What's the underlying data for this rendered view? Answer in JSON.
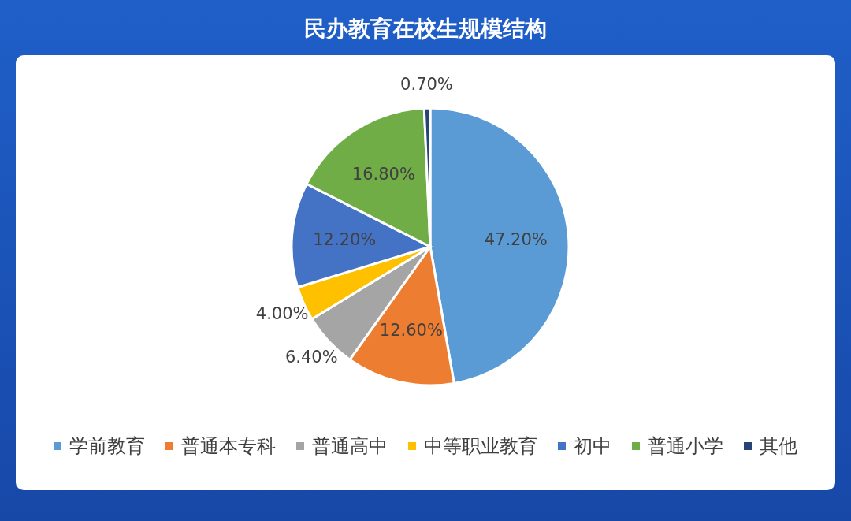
{
  "chart_data": {
    "type": "pie",
    "title": "民办教育在校生规模结构",
    "categories": [
      "学前教育",
      "普通本专科",
      "普通高中",
      "中等职业教育",
      "初中",
      "普通小学",
      "其他"
    ],
    "values": [
      47.2,
      12.6,
      6.4,
      4.0,
      12.2,
      16.8,
      0.7
    ],
    "value_labels": [
      "47.20%",
      "12.60%",
      "6.40%",
      "4.00%",
      "12.20%",
      "16.80%",
      "0.70%"
    ],
    "colors": [
      "#5b9bd5",
      "#ed7d31",
      "#a5a5a5",
      "#ffc000",
      "#4472c4",
      "#70ad47",
      "#264478"
    ],
    "legend": "bottom"
  }
}
